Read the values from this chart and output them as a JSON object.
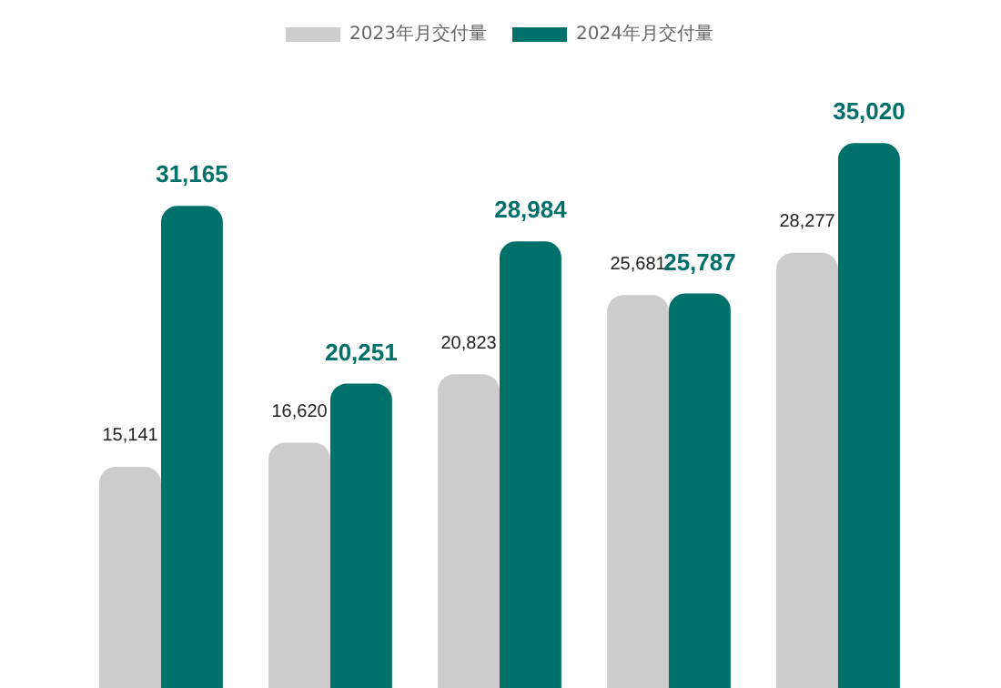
{
  "chart_data": {
    "type": "bar",
    "categories": [
      null,
      null,
      null,
      null,
      null
    ],
    "series": [
      {
        "name": "2023年月交付量",
        "color": "#cccccc",
        "values": [
          15141,
          16620,
          20823,
          25681,
          28277
        ],
        "value_labels": [
          "15,141",
          "16,620",
          "20,823",
          "25,681",
          "28,277"
        ]
      },
      {
        "name": "2024年月交付量",
        "color": "#00706a",
        "values": [
          31165,
          20251,
          28984,
          25787,
          35020
        ],
        "value_labels": [
          "31,165",
          "20,251",
          "28,984",
          "25,787",
          "35,020"
        ]
      }
    ],
    "legend": "top"
  }
}
